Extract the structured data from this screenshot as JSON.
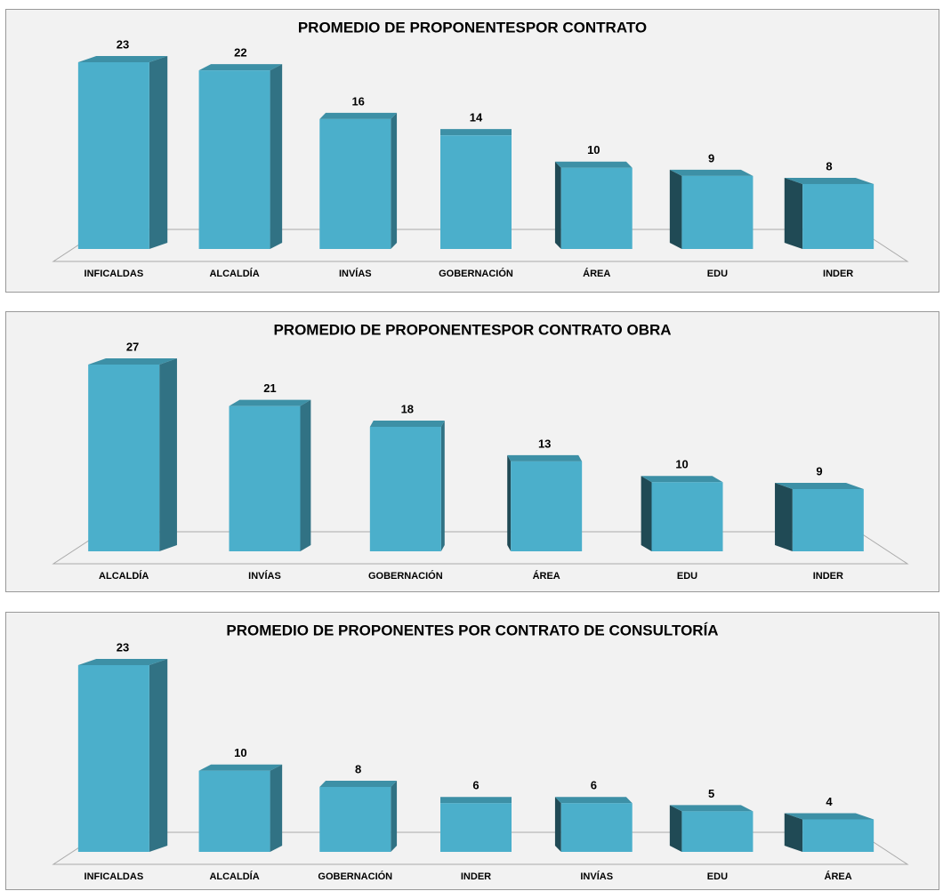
{
  "chart_data": [
    {
      "type": "bar",
      "title": "PROMEDIO DE PROPONENTESPOR CONTRATO",
      "categories": [
        "INFICALDAS",
        "ALCALDÍA",
        "INVÍAS",
        "GOBERNACIÓN",
        "ÁREA",
        "EDU",
        "INDER"
      ],
      "values": [
        23,
        22,
        16,
        14,
        10,
        9,
        8
      ],
      "color": "#4bafcb"
    },
    {
      "type": "bar",
      "title": "PROMEDIO DE PROPONENTESPOR CONTRATO OBRA",
      "categories": [
        "ALCALDÍA",
        "INVÍAS",
        "GOBERNACIÓN",
        "ÁREA",
        "EDU",
        "INDER"
      ],
      "values": [
        27,
        21,
        18,
        13,
        10,
        9
      ],
      "color": "#4bafcb"
    },
    {
      "type": "bar",
      "title": "PROMEDIO DE PROPONENTES POR CONTRATO DE CONSULTORÍA",
      "categories": [
        "INFICALDAS",
        "ALCALDÍA",
        "GOBERNACIÓN",
        "INDER",
        "INVÍAS",
        "EDU",
        "ÁREA"
      ],
      "values": [
        23,
        10,
        8,
        6,
        6,
        5,
        4
      ],
      "color": "#4bafcb"
    }
  ]
}
